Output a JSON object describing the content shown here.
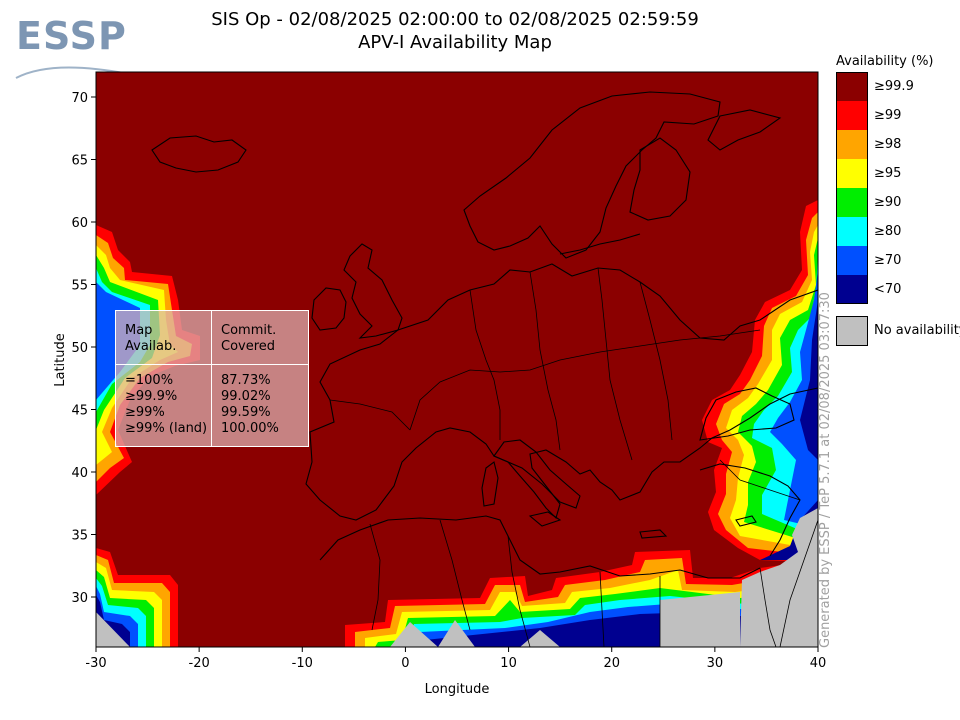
{
  "logo": {
    "text": "ESSP"
  },
  "header": {
    "title_line1": "SIS Op - 02/08/2025 02:00:00 to 02/08/2025 02:59:59",
    "title_line2": "APV-I Availability Map"
  },
  "axes": {
    "x_label": "Longitude",
    "y_label": "Latitude",
    "x_ticks": [
      "-30",
      "-20",
      "-10",
      "0",
      "10",
      "20",
      "30",
      "40"
    ],
    "y_ticks": [
      "70",
      "65",
      "60",
      "55",
      "50",
      "45",
      "40",
      "35",
      "30"
    ],
    "lon_range": [
      -30,
      40
    ],
    "lat_range": [
      26,
      72
    ]
  },
  "stats_table": {
    "header_col1": [
      "Map",
      "Availab."
    ],
    "header_col2": [
      "Commit.",
      "Covered"
    ],
    "rows": [
      {
        "threshold": "=100%",
        "covered": "87.73%"
      },
      {
        "threshold": "≥99.9%",
        "covered": "99.02%"
      },
      {
        "threshold": "≥99%",
        "covered": "99.59%"
      },
      {
        "threshold": "≥99% (land)",
        "covered": "100.00%"
      }
    ]
  },
  "legend": {
    "title": "Availability (%)",
    "items": [
      {
        "label": "≥99.9",
        "color": "#8b0000"
      },
      {
        "label": "≥99",
        "color": "#ff0000"
      },
      {
        "label": "≥98",
        "color": "#ffa500"
      },
      {
        "label": "≥95",
        "color": "#ffff00"
      },
      {
        "label": "≥90",
        "color": "#00ee00"
      },
      {
        "label": "≥80",
        "color": "#00ffff"
      },
      {
        "label": "≥70",
        "color": "#0050ff"
      },
      {
        "label": "<70",
        "color": "#000090"
      }
    ],
    "no_availability_label": "No availability",
    "no_availability_color": "#c0c0c0"
  },
  "credit": "Generated by ESSP / TeP 5.7.1 at 02/08/2025 03:07:30"
}
